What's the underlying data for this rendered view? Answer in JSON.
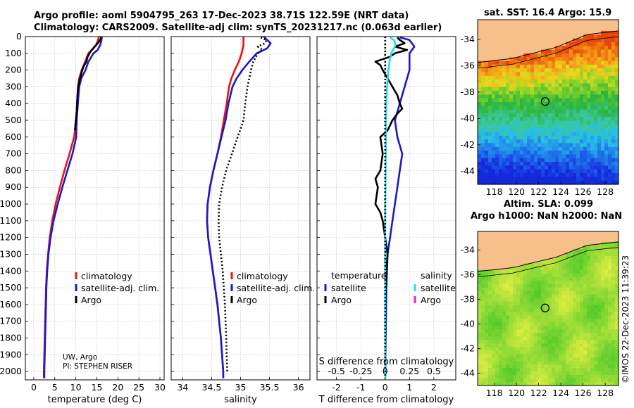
{
  "header": {
    "title_line1": "Argo profile: aoml 5904795_263 17-Dec-2023 38.71S 122.59E (NRT data)",
    "title_line2": "Climatology: CARS2009. Satellite-adj clim: synTS_20231217.nc (0.063d earlier)"
  },
  "credits": {
    "line1": "UW, Argo",
    "line2": "PI: STEPHEN RISER"
  },
  "watermark": "©IMOS 22-Dec-2023 11:39:23",
  "colors": {
    "climatology": "#ee1111",
    "satellite": "#1a1acc",
    "argo": "#000000",
    "salinity_satellite": "#22ddee",
    "salinity_argo": "#ee22cc",
    "land": "#f7c08a",
    "grid": "#b8b8b8"
  },
  "chart_data": [
    {
      "type": "line",
      "xlabel": "temperature (deg C)",
      "ylabel": "",
      "xlim": [
        -2,
        31
      ],
      "ylim": [
        2050,
        0
      ],
      "xticks": [
        0,
        5,
        10,
        15,
        20,
        25,
        30
      ],
      "yticks": [
        0,
        100,
        200,
        300,
        400,
        500,
        600,
        700,
        800,
        900,
        1000,
        1100,
        1200,
        1300,
        1400,
        1500,
        1600,
        1700,
        1800,
        1900,
        2000
      ],
      "legend": {
        "position": "lower-right",
        "entries": [
          "climatology",
          "satellite-adj. clim.",
          "Argo"
        ]
      },
      "series": [
        {
          "name": "climatology",
          "style": "solid",
          "color": "#ee1111",
          "points": [
            [
              15.5,
              0
            ],
            [
              15.3,
              20
            ],
            [
              14.8,
              50
            ],
            [
              13.8,
              80
            ],
            [
              13.0,
              100
            ],
            [
              12.2,
              150
            ],
            [
              11.4,
              200
            ],
            [
              10.8,
              250
            ],
            [
              10.5,
              300
            ],
            [
              10.3,
              400
            ],
            [
              10.1,
              500
            ],
            [
              9.6,
              600
            ],
            [
              8.5,
              700
            ],
            [
              7.3,
              800
            ],
            [
              6.2,
              900
            ],
            [
              5.2,
              1000
            ],
            [
              4.4,
              1100
            ],
            [
              3.8,
              1200
            ],
            [
              3.4,
              1300
            ],
            [
              3.1,
              1400
            ],
            [
              2.9,
              1500
            ],
            [
              2.8,
              1600
            ],
            [
              2.7,
              1700
            ],
            [
              2.6,
              1800
            ],
            [
              2.5,
              1900
            ],
            [
              2.4,
              2000
            ],
            [
              2.4,
              2040
            ]
          ]
        },
        {
          "name": "satellite-adj. clim.",
          "style": "solid",
          "color": "#1a1acc",
          "points": [
            [
              16.2,
              0
            ],
            [
              16.1,
              20
            ],
            [
              15.8,
              50
            ],
            [
              15.2,
              80
            ],
            [
              14.2,
              100
            ],
            [
              13.0,
              150
            ],
            [
              12.3,
              200
            ],
            [
              11.3,
              250
            ],
            [
              10.8,
              300
            ],
            [
              10.5,
              400
            ],
            [
              10.2,
              500
            ],
            [
              10.1,
              600
            ],
            [
              9.2,
              700
            ],
            [
              8.0,
              800
            ],
            [
              6.8,
              900
            ],
            [
              5.7,
              1000
            ],
            [
              4.7,
              1100
            ],
            [
              4.0,
              1200
            ],
            [
              3.5,
              1300
            ],
            [
              3.2,
              1400
            ],
            [
              3.0,
              1500
            ],
            [
              2.9,
              1600
            ],
            [
              2.8,
              1700
            ],
            [
              2.7,
              1800
            ],
            [
              2.6,
              1900
            ],
            [
              2.5,
              2000
            ],
            [
              2.5,
              2040
            ]
          ]
        },
        {
          "name": "Argo",
          "style": "solid",
          "color": "#000000",
          "points": [
            [
              16.0,
              5
            ],
            [
              15.8,
              20
            ],
            [
              15.2,
              40
            ],
            [
              14.5,
              60
            ],
            [
              13.5,
              90
            ],
            [
              12.8,
              120
            ],
            [
              12.5,
              150
            ],
            [
              11.8,
              180
            ],
            [
              11.3,
              220
            ],
            [
              10.9,
              260
            ],
            [
              10.6,
              300
            ],
            [
              10.4,
              350
            ],
            [
              10.3,
              400
            ],
            [
              10.2,
              450
            ],
            [
              10.0,
              500
            ],
            [
              9.8,
              560
            ]
          ]
        }
      ]
    },
    {
      "type": "line",
      "xlabel": "salinity",
      "ylabel": "",
      "xlim": [
        33.8,
        36.2
      ],
      "ylim": [
        2050,
        0
      ],
      "xticks": [
        34,
        34.5,
        35,
        35.5,
        36
      ],
      "legend": {
        "position": "lower-right",
        "entries": [
          "climatology",
          "satellite-adj. clim.",
          "Argo"
        ]
      },
      "series": [
        {
          "name": "climatology",
          "style": "solid",
          "color": "#ee1111",
          "points": [
            [
              35.05,
              0
            ],
            [
              35.05,
              50
            ],
            [
              35.02,
              100
            ],
            [
              34.97,
              150
            ],
            [
              34.9,
              200
            ],
            [
              34.84,
              250
            ],
            [
              34.8,
              300
            ],
            [
              34.76,
              400
            ],
            [
              34.71,
              500
            ],
            [
              34.66,
              600
            ],
            [
              34.6,
              700
            ],
            [
              34.53,
              800
            ],
            [
              34.47,
              900
            ],
            [
              34.43,
              1000
            ],
            [
              34.42,
              1100
            ],
            [
              34.44,
              1200
            ],
            [
              34.48,
              1300
            ],
            [
              34.52,
              1400
            ],
            [
              34.56,
              1500
            ],
            [
              34.6,
              1600
            ],
            [
              34.63,
              1700
            ],
            [
              34.66,
              1800
            ],
            [
              34.68,
              1900
            ],
            [
              34.7,
              2000
            ],
            [
              34.7,
              2040
            ]
          ]
        },
        {
          "name": "satellite-adj. clim.",
          "style": "solid",
          "color": "#1a1acc",
          "points": [
            [
              35.4,
              0
            ],
            [
              35.52,
              40
            ],
            [
              35.46,
              70
            ],
            [
              35.28,
              100
            ],
            [
              35.15,
              150
            ],
            [
              35.03,
              200
            ],
            [
              34.93,
              250
            ],
            [
              34.86,
              300
            ],
            [
              34.79,
              400
            ],
            [
              34.74,
              500
            ],
            [
              34.67,
              600
            ],
            [
              34.6,
              700
            ],
            [
              34.53,
              800
            ],
            [
              34.47,
              900
            ],
            [
              34.43,
              1000
            ],
            [
              34.42,
              1100
            ],
            [
              34.44,
              1200
            ],
            [
              34.48,
              1300
            ],
            [
              34.52,
              1400
            ],
            [
              34.56,
              1500
            ],
            [
              34.6,
              1600
            ],
            [
              34.63,
              1700
            ],
            [
              34.66,
              1800
            ],
            [
              34.68,
              1900
            ],
            [
              34.7,
              2000
            ],
            [
              34.7,
              2040
            ]
          ]
        },
        {
          "name": "Argo",
          "style": "dotted",
          "color": "#000000",
          "points": [
            [
              35.35,
              5
            ],
            [
              35.45,
              20
            ],
            [
              35.42,
              40
            ],
            [
              35.3,
              60
            ],
            [
              35.38,
              80
            ],
            [
              35.3,
              100
            ],
            [
              35.22,
              150
            ],
            [
              35.18,
              200
            ],
            [
              35.15,
              250
            ],
            [
              35.12,
              300
            ],
            [
              35.08,
              400
            ],
            [
              35.05,
              500
            ],
            [
              35.0,
              550
            ],
            [
              34.95,
              600
            ],
            [
              34.85,
              700
            ],
            [
              34.75,
              800
            ],
            [
              34.68,
              900
            ],
            [
              34.63,
              1000
            ],
            [
              34.62,
              1100
            ],
            [
              34.63,
              1200
            ],
            [
              34.66,
              1300
            ],
            [
              34.69,
              1400
            ],
            [
              34.71,
              1500
            ],
            [
              34.73,
              1600
            ],
            [
              34.74,
              1700
            ],
            [
              34.75,
              1800
            ],
            [
              34.76,
              1900
            ],
            [
              34.77,
              2000
            ]
          ]
        }
      ]
    },
    {
      "type": "line",
      "xlabel": "T difference from climatology",
      "xlabel_top": "S difference from climatology",
      "ylabel": "",
      "xlim": [
        -2.8,
        2.9
      ],
      "ylim": [
        2050,
        0
      ],
      "xticks": [
        -2,
        -1,
        0,
        1,
        2
      ],
      "xtick_labels_top": [
        "-0.5",
        "-0.25",
        "0",
        "0.25",
        "0.5"
      ],
      "legend_temperature": {
        "title": "temperature",
        "position": "lower-left",
        "entries": [
          "satellite",
          "Argo"
        ]
      },
      "legend_salinity": {
        "title": "salinity",
        "position": "lower-right",
        "entries": [
          "satellite",
          "Argo"
        ]
      },
      "series": [
        {
          "name": "temperature satellite",
          "style": "solid",
          "color": "#1a1acc",
          "points": [
            [
              0.6,
              5
            ],
            [
              1.0,
              20
            ],
            [
              1.2,
              60
            ],
            [
              1.0,
              100
            ],
            [
              1.0,
              200
            ],
            [
              0.8,
              300
            ],
            [
              0.6,
              400
            ],
            [
              0.4,
              500
            ],
            [
              0.5,
              600
            ],
            [
              0.7,
              700
            ],
            [
              0.6,
              800
            ],
            [
              0.5,
              900
            ],
            [
              0.4,
              1000
            ],
            [
              0.3,
              1100
            ],
            [
              0.2,
              1200
            ],
            [
              0.1,
              1300
            ],
            [
              0.05,
              1500
            ],
            [
              0.02,
              1800
            ],
            [
              0.0,
              2040
            ]
          ]
        },
        {
          "name": "temperature Argo",
          "style": "solid",
          "color": "#000000",
          "points": [
            [
              0.5,
              5
            ],
            [
              0.6,
              20
            ],
            [
              0.8,
              40
            ],
            [
              0.4,
              60
            ],
            [
              0.9,
              80
            ],
            [
              0.4,
              100
            ],
            [
              0.2,
              120
            ],
            [
              -0.4,
              150
            ],
            [
              -0.2,
              170
            ],
            [
              -0.1,
              200
            ],
            [
              0.1,
              250
            ],
            [
              0.3,
              300
            ],
            [
              0.5,
              350
            ],
            [
              0.6,
              400
            ],
            [
              0.7,
              430
            ],
            [
              0.5,
              460
            ],
            [
              0.3,
              500
            ],
            [
              0.1,
              560
            ],
            [
              -0.2,
              600
            ],
            [
              -0.1,
              700
            ],
            [
              -0.2,
              800
            ],
            [
              -0.4,
              850
            ],
            [
              -0.3,
              900
            ],
            [
              -0.4,
              1000
            ],
            [
              -0.2,
              1050
            ],
            [
              -0.1,
              1100
            ],
            [
              0.0,
              1200
            ],
            [
              0.1,
              1300
            ],
            [
              0.05,
              1400
            ],
            [
              0.0,
              1600
            ],
            [
              0.0,
              2040
            ]
          ]
        },
        {
          "name": "salinity satellite",
          "style": "solid",
          "color": "#22ddee",
          "points": [
            [
              0.2,
              5
            ],
            [
              0.35,
              20
            ],
            [
              0.42,
              40
            ],
            [
              0.4,
              60
            ],
            [
              0.25,
              100
            ],
            [
              0.18,
              150
            ],
            [
              0.13,
              200
            ],
            [
              0.08,
              300
            ],
            [
              0.05,
              400
            ],
            [
              0.03,
              500
            ],
            [
              0.02,
              800
            ],
            [
              0.0,
              1000
            ],
            [
              0.0,
              2040
            ]
          ]
        },
        {
          "name": "salinity Argo",
          "style": "dotted",
          "color": "#000000",
          "points": [
            [
              0.0,
              0
            ],
            [
              0.0,
              2040
            ]
          ]
        }
      ]
    },
    {
      "type": "heatmap",
      "title": "sat. SST: 16.4 Argo: 15.9",
      "xlim": [
        116.5,
        129.2
      ],
      "ylim": [
        -45.0,
        -32.5
      ],
      "xticks": [
        118,
        120,
        122,
        124,
        126,
        128
      ],
      "yticks": [
        -34,
        -36,
        -38,
        -40,
        -42,
        -44
      ],
      "marker": {
        "lon": 122.59,
        "lat": -38.71
      }
    },
    {
      "type": "heatmap",
      "title_line1": "Altim. SLA: 0.099",
      "title_line2": "Argo h1000: NaN h2000: NaN",
      "xlim": [
        116.5,
        129.2
      ],
      "ylim": [
        -45.0,
        -32.5
      ],
      "xticks": [
        118,
        120,
        122,
        124,
        126,
        128
      ],
      "yticks": [
        -34,
        -36,
        -38,
        -40,
        -42,
        -44
      ],
      "marker": {
        "lon": 122.59,
        "lat": -38.71
      }
    }
  ]
}
